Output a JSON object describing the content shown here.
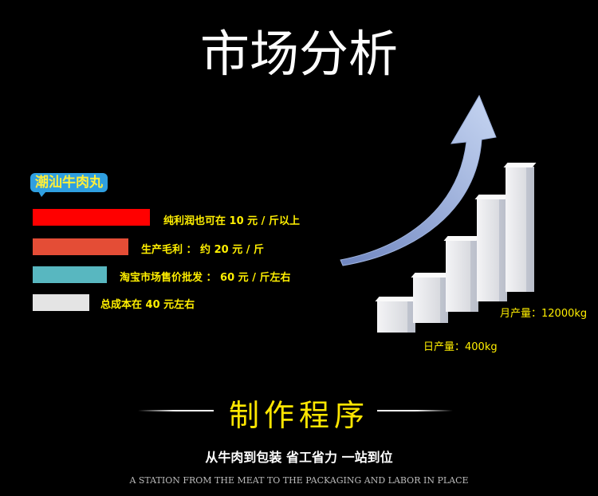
{
  "title": "市场分析",
  "product_badge": "潮汕牛肉丸",
  "bars": [
    {
      "label": "纯利润也可在 10 元 / 斤以上",
      "color": "#ff0000"
    },
    {
      "label": "生产毛利 ： 约 20 元 / 斤",
      "color": "#e44d36"
    },
    {
      "label": "淘宝市场售价批发 ： 60 元 / 斤左右",
      "color": "#58b7c0"
    },
    {
      "label": "总成本在 40 元左右",
      "color": "#e4e4e4"
    }
  ],
  "growth": {
    "daily": "日产量：400kg",
    "monthly": "月产量：12000kg"
  },
  "section_title": "制作程序",
  "subtitle": "从牛肉到包装 省工省力 一站到位",
  "english": "A STATION FROM THE MEAT TO THE PACKAGING AND LABOR IN PLACE"
}
